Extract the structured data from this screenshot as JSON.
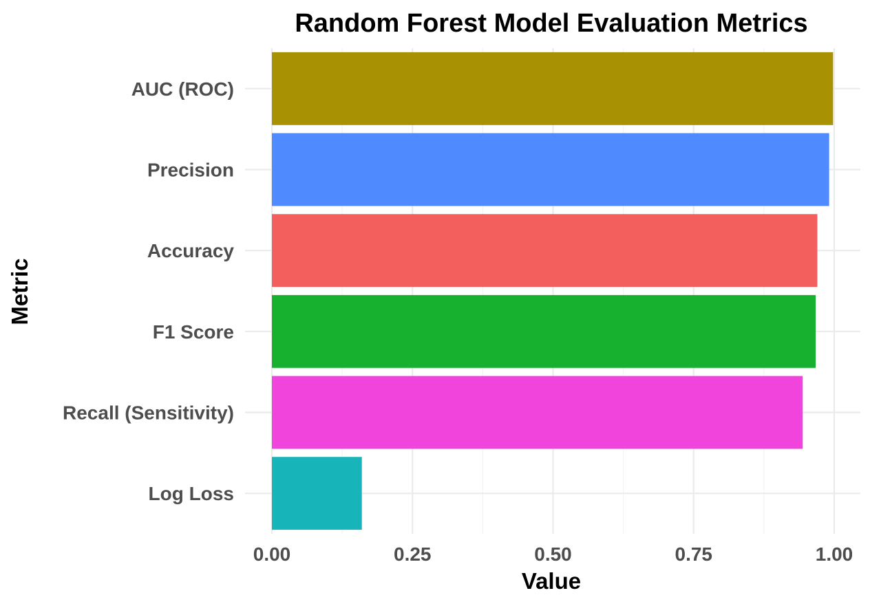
{
  "chart_data": {
    "type": "bar",
    "orientation": "horizontal",
    "title": "Random Forest Model Evaluation Metrics",
    "xlabel": "Value",
    "ylabel": "Metric",
    "xlim": [
      0,
      1.04
    ],
    "x_ticks": [
      "0.00",
      "0.25",
      "0.50",
      "0.75",
      "1.00"
    ],
    "x_tick_values": [
      0,
      0.25,
      0.5,
      0.75,
      1.0
    ],
    "grid": true,
    "legend": "none",
    "categories": [
      "AUC (ROC)",
      "Precision",
      "Accuracy",
      "F1 Score",
      "Recall (Sensitivity)",
      "Log Loss"
    ],
    "values": [
      0.998,
      0.991,
      0.97,
      0.967,
      0.944,
      0.16
    ],
    "colors": [
      "#A89203",
      "#508AFF",
      "#F25F5C",
      "#17B12F",
      "#F044DC",
      "#17B4BA"
    ]
  }
}
